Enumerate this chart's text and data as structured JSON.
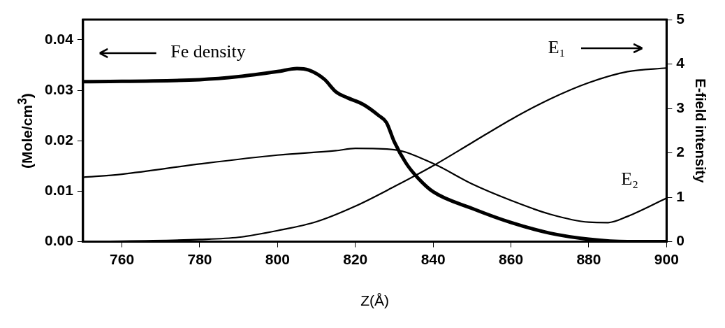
{
  "chart_data": {
    "type": "line",
    "xlabel": "Z(Å)",
    "ylabel": "(Mole/cm$^{3}$)",
    "y2label": "E-field intensity",
    "xlim": [
      750,
      900
    ],
    "xticks": [
      760,
      780,
      800,
      820,
      840,
      860,
      880,
      900
    ],
    "ylim": [
      0,
      0.044
    ],
    "yticks": [
      {
        "value": 0,
        "label": "0.00"
      },
      {
        "value": 0.01,
        "label": "0.01"
      },
      {
        "value": 0.02,
        "label": "0.02"
      },
      {
        "value": 0.03,
        "label": "0.03"
      },
      {
        "value": 0.04,
        "label": "0.04"
      }
    ],
    "y2lim": [
      0,
      5
    ],
    "y2ticks": [
      0,
      1,
      2,
      3,
      4,
      5
    ],
    "grid": false,
    "legend": "top left",
    "line_style": "solid",
    "marker": "none",
    "series": [
      {
        "name": "Fe density",
        "color": "#000000",
        "x": [
          750,
          780,
          790,
          800,
          805,
          808,
          812,
          815,
          818,
          822,
          826,
          828,
          830,
          833,
          836,
          840,
          850,
          860,
          870,
          880,
          890,
          900
        ],
        "values": [
          0.0317,
          0.0321,
          0.0327,
          0.0337,
          0.0343,
          0.034,
          0.0322,
          0.0297,
          0.0285,
          0.0272,
          0.025,
          0.0236,
          0.0198,
          0.0156,
          0.0127,
          0.0099,
          0.0066,
          0.0038,
          0.0017,
          0.0005,
          0,
          0
        ]
      },
      {
        "name": "E₁",
        "color": "#000000",
        "axis": "y2",
        "x": [
          750,
          780,
          790,
          800,
          810,
          820,
          830,
          840,
          850,
          860,
          870,
          880,
          890,
          900
        ],
        "values": [
          0,
          0.05,
          0.1,
          0.25,
          0.45,
          0.8,
          1.24,
          1.71,
          2.23,
          2.75,
          3.21,
          3.58,
          3.83,
          3.91
        ]
      },
      {
        "name": "E₂",
        "color": "#000000",
        "axis": "y2",
        "x": [
          750,
          760,
          780,
          800,
          815,
          820,
          830,
          840,
          850,
          860,
          870,
          880,
          885,
          890,
          900
        ],
        "values": [
          1.45,
          1.52,
          1.75,
          1.95,
          2.05,
          2.1,
          2.07,
          1.76,
          1.3,
          0.93,
          0.62,
          0.44,
          0.43,
          0.57,
          0.98
        ]
      }
    ]
  }
}
